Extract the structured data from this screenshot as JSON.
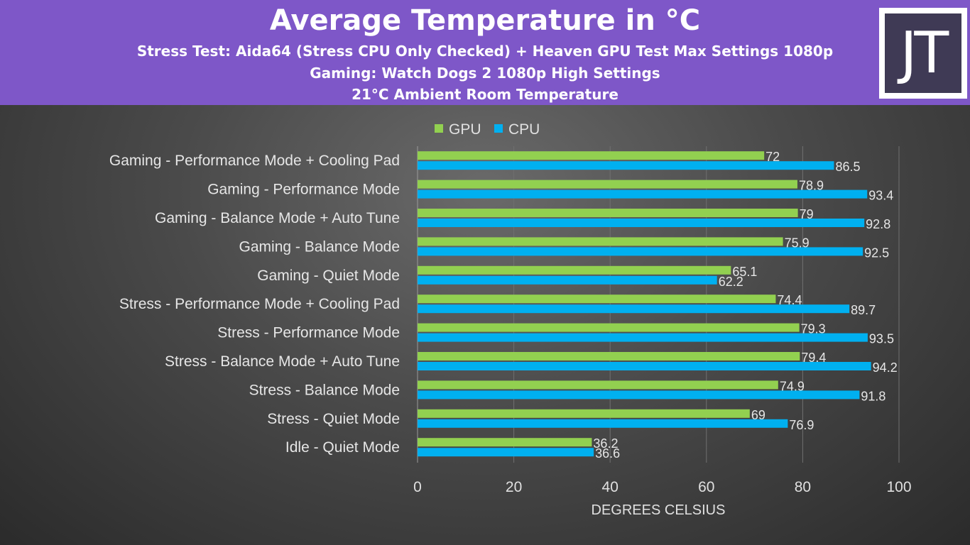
{
  "header": {
    "title": "Average Temperature in °C",
    "sub1": "Stress Test: Aida64 (Stress CPU Only Checked) + Heaven GPU Test Max Settings 1080p",
    "sub2": "Gaming: Watch Dogs 2 1080p High Settings",
    "sub3": "21°C Ambient Room Temperature",
    "logo": "JT"
  },
  "chart_data": {
    "type": "bar",
    "orientation": "horizontal",
    "title": "Average Temperature in °C",
    "categories": [
      "Gaming - Performance Mode + Cooling Pad",
      "Gaming - Performance Mode",
      "Gaming - Balance Mode + Auto Tune",
      "Gaming - Balance Mode",
      "Gaming  - Quiet Mode",
      "Stress - Performance Mode + Cooling Pad",
      "Stress - Performance Mode",
      "Stress - Balance Mode + Auto Tune",
      "Stress - Balance Mode",
      "Stress - Quiet Mode",
      "Idle - Quiet Mode"
    ],
    "series": [
      {
        "name": "GPU",
        "color": "#92d050",
        "values": [
          72,
          78.9,
          79,
          75.9,
          65.1,
          74.4,
          79.3,
          79.4,
          74.9,
          69,
          36.2
        ]
      },
      {
        "name": "CPU",
        "color": "#00b0f0",
        "values": [
          86.5,
          93.4,
          92.8,
          92.5,
          62.2,
          89.7,
          93.5,
          94.2,
          91.8,
          76.9,
          36.6
        ]
      }
    ],
    "xlabel": "DEGREES CELSIUS",
    "ylabel": "",
    "xlim": [
      0,
      100
    ],
    "xticks": [
      0,
      20,
      40,
      60,
      80,
      100
    ],
    "grid": true,
    "legend": "top"
  }
}
